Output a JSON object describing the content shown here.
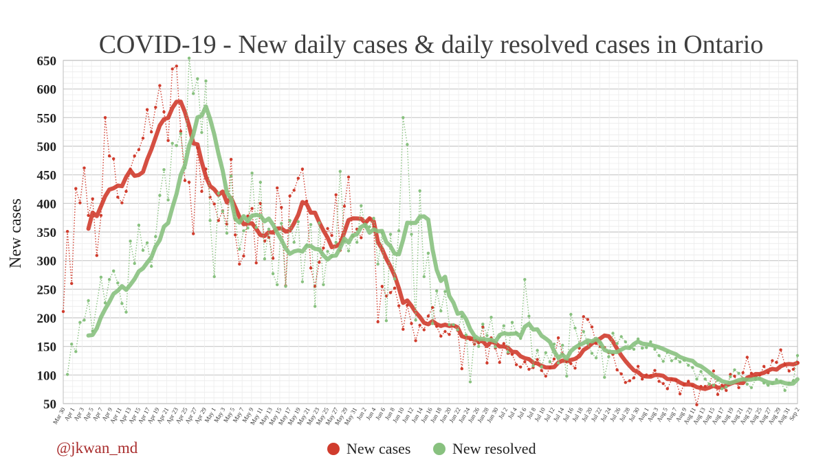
{
  "chart_data": {
    "type": "line",
    "title": "COVID-19 - New daily cases & daily resolved cases in Ontario",
    "xlabel": "",
    "ylabel": "New cases",
    "ylim": [
      50,
      650
    ],
    "yticks": [
      50,
      100,
      150,
      200,
      250,
      300,
      350,
      400,
      450,
      500,
      550,
      600,
      650
    ],
    "grid": true,
    "legend_position": "bottom-center",
    "credit": "@jkwan_md",
    "x_tick_labels": [
      "Mar 30",
      "Apr 1",
      "Apr 3",
      "Apr 5",
      "Apr 7",
      "Apr 9",
      "Apr 11",
      "Apr 13",
      "Apr 15",
      "Apr 17",
      "Apr 19",
      "Apr 21",
      "Apr 23",
      "Apr 25",
      "Apr 27",
      "Apr 29",
      "May 1",
      "May 3",
      "May 5",
      "May 7",
      "May 9",
      "May 11",
      "May 13",
      "May 15",
      "May 17",
      "May 19",
      "May 21",
      "May 23",
      "May 25",
      "May 27",
      "May 29",
      "May 31",
      "Jun 2",
      "Jun 4",
      "Jun 6",
      "Jun 8",
      "Jun 10",
      "Jun 12",
      "Jun 14",
      "Jun 16",
      "Jun 18",
      "Jun 20",
      "Jun 22",
      "Jun 24",
      "Jun 26",
      "Jun 28",
      "Jun 30",
      "Jul 2",
      "Jul 4",
      "Jul 6",
      "Jul 8",
      "Jul 10",
      "Jul 12",
      "Jul 14",
      "Jul 16",
      "Jul 18",
      "Jul 20",
      "Jul 22",
      "Jul 24",
      "Jul 26",
      "Jul 28",
      "Jul 30",
      "Aug 1",
      "Aug 3",
      "Aug 5",
      "Aug 7",
      "Aug 9",
      "Aug 11",
      "Aug 13",
      "Aug 15",
      "Aug 17",
      "Aug 19",
      "Aug 21",
      "Aug 23",
      "Aug 25",
      "Aug 27",
      "Aug 29",
      "Aug 31",
      "Sep 2"
    ],
    "x_start_label": "Mar 30",
    "series": [
      {
        "name": "New cases",
        "color": "#d03c2d",
        "daily": [
          211,
          351,
          260,
          426,
          401,
          462,
          379,
          408,
          309,
          379,
          550,
          483,
          478,
          411,
          401,
          421,
          460,
          483,
          494,
          514,
          564,
          525,
          568,
          606,
          560,
          510,
          635,
          640,
          526,
          440,
          437,
          347,
          497,
          421,
          460,
          411,
          399,
          370,
          387,
          364,
          477,
          345,
          294,
          308,
          378,
          391,
          296,
          400,
          334,
          341,
          304,
          427,
          393,
          256,
          413,
          423,
          444,
          460,
          404,
          287,
          255,
          297,
          322,
          356,
          344,
          415,
          318,
          395,
          446,
          343,
          355,
          340,
          365,
          373,
          359,
          193,
          255,
          238,
          244,
          252,
          221,
          180,
          222,
          190,
          160,
          187,
          179,
          203,
          218,
          185,
          168,
          176,
          171,
          186,
          178,
          111,
          168,
          162,
          154,
          156,
          184,
          121,
          165,
          147,
          122,
          155,
          138,
          136,
          118,
          114,
          123,
          110,
          113,
          127,
          108,
          98,
          113,
          128,
          165,
          137,
          123,
          120,
          112,
          147,
          202,
          197,
          184,
          155,
          150,
          148,
          139,
          136,
          109,
          102,
          87,
          90,
          95,
          115,
          93,
          100,
          99,
          108,
          89,
          85,
          76,
          92,
          91,
          67,
          84,
          89,
          81,
          48,
          80,
          80,
          84,
          107,
          66,
          82,
          73,
          101,
          98,
          78,
          104,
          131,
          103,
          97,
          100,
          115,
          104,
          125,
          122,
          144,
          118,
          107,
          110,
          122
        ]
      },
      {
        "name": "New resolved",
        "color": "#88c17f",
        "daily": [
          null,
          101,
          154,
          141,
          192,
          196,
          230,
          177,
          null,
          271,
          226,
          267,
          282,
          261,
          225,
          210,
          334,
          295,
          362,
          318,
          331,
          290,
          342,
          414,
          459,
          406,
          505,
          501,
          522,
          462,
          654,
          592,
          618,
          524,
          614,
          370,
          272,
          418,
          386,
          348,
          448,
          372,
          320,
          352,
          357,
          453,
          358,
          437,
          303,
          355,
          277,
          258,
          365,
          255,
          370,
          332,
          368,
          263,
          327,
          363,
          220,
          366,
          258,
          316,
          307,
          332,
          456,
          334,
          317,
          345,
          332,
          396,
          359,
          359,
          374,
          294,
          349,
          195,
          346,
          268,
          352,
          550,
          503,
          346,
          196,
          422,
          272,
          313,
          190,
          247,
          212,
          246,
          188,
          188,
          179,
          202,
          170,
          88,
          164,
          150,
          189,
          169,
          201,
          149,
          167,
          186,
          140,
          192,
          174,
          164,
          267,
          203,
          116,
          143,
          114,
          139,
          123,
          154,
          121,
          152,
          98,
          206,
          182,
          155,
          176,
          155,
          138,
          130,
          157,
          96,
          132,
          173,
          155,
          167,
          158,
          149,
          145,
          163,
          147,
          148,
          158,
          145,
          134,
          124,
          140,
          125,
          129,
          123,
          126,
          117,
          113,
          93,
          106,
          93,
          84,
          82,
          91,
          76,
          79,
          97,
          109,
          103,
          94,
          84,
          78,
          92,
          94,
          86,
          82,
          85,
          92,
          88,
          73,
          86,
          90,
          134
        ]
      }
    ]
  }
}
